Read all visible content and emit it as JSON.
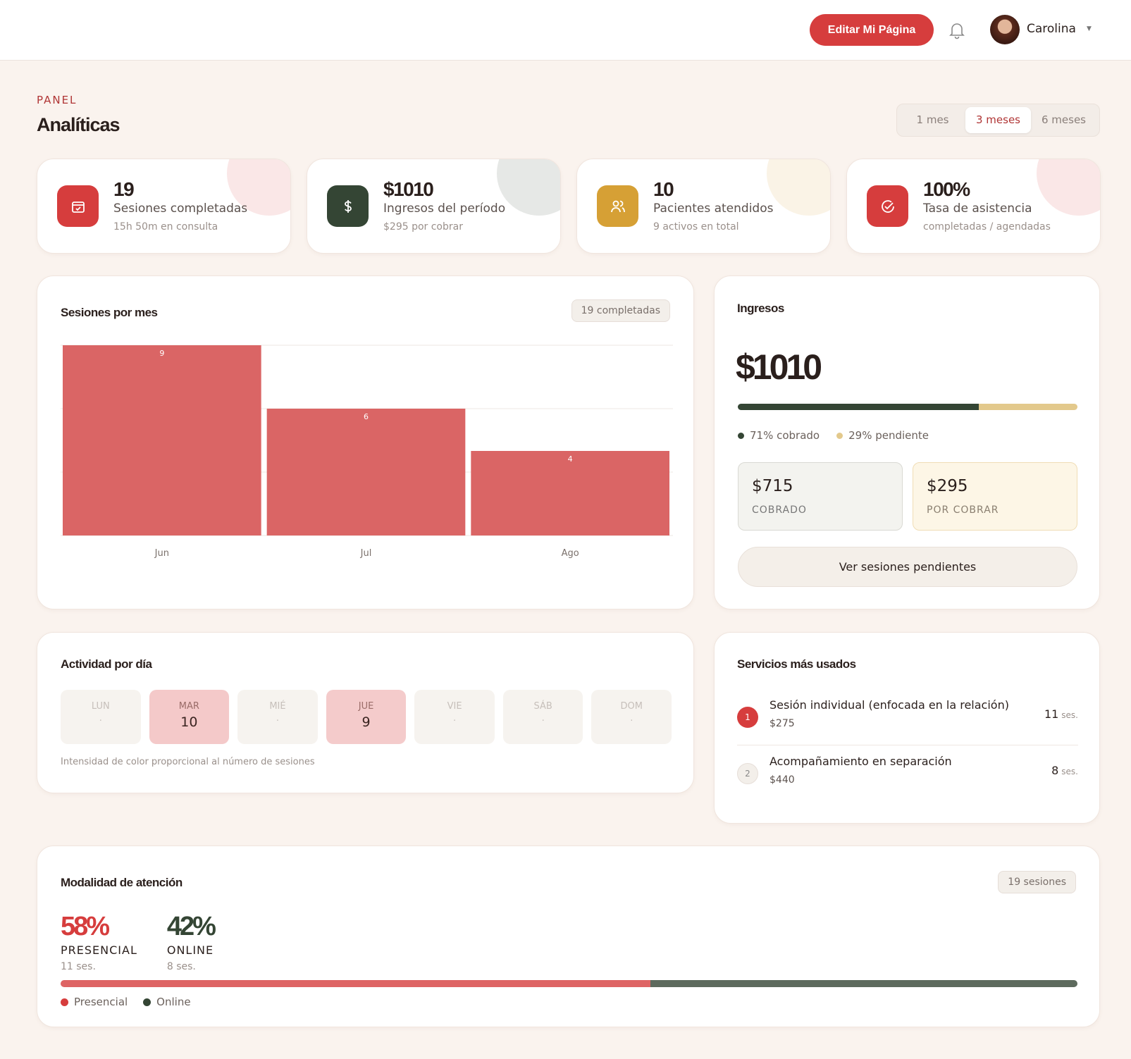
{
  "header": {
    "button": "Editar Mi Página",
    "user": "Carolina"
  },
  "page": {
    "eyebrow": "PANEL",
    "title": "Analíticas",
    "ranges": [
      "1 mes",
      "3 meses",
      "6 meses"
    ],
    "active_range": 1
  },
  "stats": [
    {
      "value": "19",
      "label": "Sesiones completadas",
      "sub": "15h 50m en consulta",
      "color": "#d63d3d"
    },
    {
      "value": "$1010",
      "label": "Ingresos del período",
      "sub": "$295 por cobrar",
      "color": "#344534"
    },
    {
      "value": "10",
      "label": "Pacientes atendidos",
      "sub": "9 activos en total",
      "color": "#d6a035"
    },
    {
      "value": "100%",
      "label": "Tasa de asistencia",
      "sub": "completadas / agendadas",
      "color": "#d63d3d"
    }
  ],
  "chart_data": {
    "type": "bar",
    "title": "Sesiones por mes",
    "badge": "19 completadas",
    "categories": [
      "Jun",
      "Jul",
      "Ago"
    ],
    "values": [
      9,
      6,
      4
    ],
    "color": "#d96262",
    "ylim": [
      0,
      9
    ],
    "yticks": [
      0,
      3,
      6,
      9
    ],
    "grid": true
  },
  "income": {
    "title": "Ingresos",
    "total": "$1010",
    "segments": [
      {
        "value": 71,
        "label": "71% cobrado",
        "color": "#344534"
      },
      {
        "value": 29,
        "label": "29% pendiente",
        "color": "#e3c98c"
      }
    ],
    "boxes": [
      {
        "amount": "$715",
        "label": "COBRADO"
      },
      {
        "amount": "$295",
        "label": "POR COBRAR"
      }
    ],
    "button": "Ver sesiones pendientes"
  },
  "activity": {
    "title": "Actividad por día",
    "days": [
      {
        "day": "LUN",
        "count": "·"
      },
      {
        "day": "MAR",
        "count": 10
      },
      {
        "day": "MIÉ",
        "count": "·"
      },
      {
        "day": "JUE",
        "count": 9
      },
      {
        "day": "VIE",
        "count": "·"
      },
      {
        "day": "SÁB",
        "count": "·"
      },
      {
        "day": "DOM",
        "count": "·"
      }
    ],
    "note": "Intensidad de color proporcional al número de sesiones"
  },
  "services": {
    "title": "Servicios más usados",
    "items": [
      {
        "rank": "1",
        "name": "Sesión individual (enfocada en la relación)",
        "price": "$275",
        "count": "11",
        "unit": "ses."
      },
      {
        "rank": "2",
        "name": "Acompañamiento en separación",
        "price": "$440",
        "count": "8",
        "unit": "ses."
      }
    ]
  },
  "modality": {
    "title": "Modalidad de atención",
    "badge": "19 sesiones",
    "items": [
      {
        "pct": 58,
        "pct_label": "58%",
        "name": "PRESENCIAL",
        "sub": "11 ses.",
        "legend": "Presencial",
        "color": "#d63d3d"
      },
      {
        "pct": 42,
        "pct_label": "42%",
        "name": "ONLINE",
        "sub": "8 ses.",
        "legend": "Online",
        "color": "#344534"
      }
    ]
  }
}
